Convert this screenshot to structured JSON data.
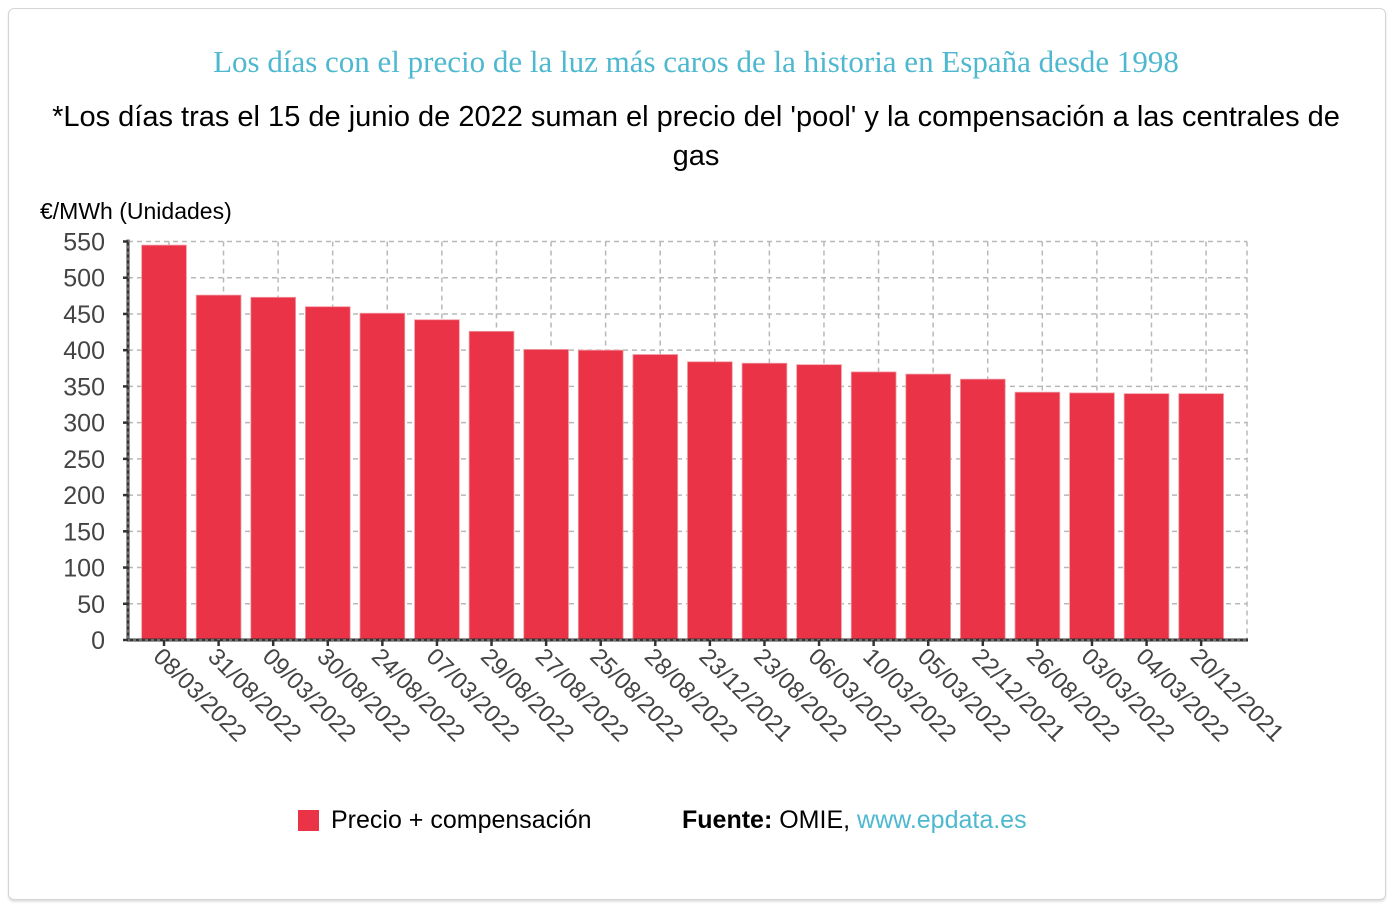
{
  "title": "Los días con el precio de la luz más caros de la historia en España desde 1998",
  "subtitle": "*Los días tras el 15 de junio de 2022 suman el precio del 'pool' y la compensación a las centrales de gas",
  "legend": {
    "label": "Precio + compensación",
    "color": "#ea3346"
  },
  "source": {
    "prefix": "Fuente:",
    "name": "OMIE,",
    "link": "www.epdata.es",
    "link_color": "#4db8cf"
  },
  "chart_data": {
    "type": "bar",
    "title": "Los días con el precio de la luz más caros de la historia en España desde 1998",
    "xlabel": "",
    "ylabel": "€/MWh (Unidades)",
    "ylim": [
      0,
      550
    ],
    "yticks": [
      0,
      50,
      100,
      150,
      200,
      250,
      300,
      350,
      400,
      450,
      500,
      550
    ],
    "grid": true,
    "legend_position": "bottom-left",
    "categories": [
      "08/03/2022",
      "31/08/2022",
      "09/03/2022",
      "30/08/2022",
      "24/08/2022",
      "07/03/2022",
      "29/08/2022",
      "27/08/2022",
      "25/08/2022",
      "28/08/2022",
      "23/12/2021",
      "23/08/2022",
      "06/03/2022",
      "10/03/2022",
      "05/03/2022",
      "22/12/2021",
      "26/08/2022",
      "03/03/2022",
      "04/03/2022",
      "20/12/2021"
    ],
    "series": [
      {
        "name": "Precio + compensación",
        "color": "#ea3346",
        "values": [
          545,
          476,
          473,
          460,
          451,
          442,
          426,
          401,
          400,
          394,
          384,
          382,
          380,
          370,
          367,
          360,
          342,
          341,
          340,
          340
        ]
      }
    ]
  }
}
